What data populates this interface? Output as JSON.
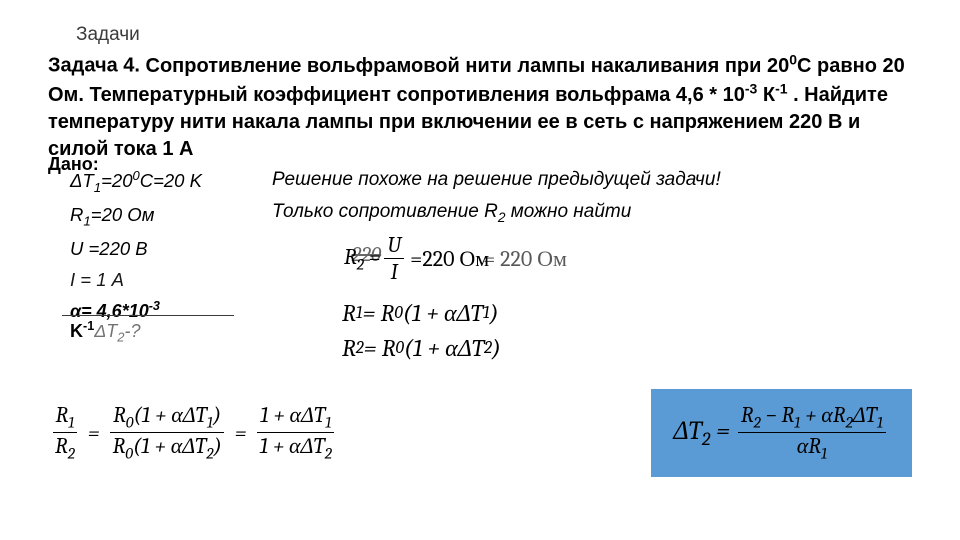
{
  "header": {
    "label": "Задачи"
  },
  "problem": {
    "title_prefix": "Задача 4.",
    "text_html": "Сопротивление вольфрамовой нити лампы накаливания при 20<span class='sup'>0</span>С равно 20 Ом. Температурный коэффициент сопротивления вольфрама 4,6 * 10<span class='sup'>-3</span> К<span class='sup'>-1</span> . Найдите температуру нити накала лампы при включении ее в сеть с напряжением 220 В и силой тока 1 А"
  },
  "given": {
    "label": "Дано:",
    "dT1": "ΔT<span class='sub'>1</span>=20<span class='sup'>0</span>C=20 K",
    "R1": "R<span class='sub'>1</span>=20 Ом",
    "U": "U =220 В",
    "I": "I = 1 А",
    "alpha": "α= 4,6*10<span class='sup'>-3</span>",
    "alpha_unit": "K<span class='sup'>-1</span>",
    "find": "ΔT<span class='sub'>2</span>-?"
  },
  "solution": {
    "line1": "Решение похоже на решение предыдущей задачи!",
    "line2": "Только сопротивление R<span class='sub'>2</span> можно найти",
    "r2_eq_lhs": "R<span class='sub'>2</span> =",
    "r2_frac_num": "U",
    "r2_frac_den": "I",
    "r2_overlay": "=220 Ом",
    "r2_scratch": "220",
    "r2_trail": "= 220 Ом",
    "f1": "R<span class='sub'>1</span> = R<span class='sub'>0</span>(1 + αΔT<span class='sub'>1</span>)",
    "f2": "R<span class='sub'>2</span> = R<span class='sub'>0</span>(1 + αΔT<span class='sub'>2</span>)"
  },
  "ratio": {
    "lhs_num": "R<span class='sub'>1</span>",
    "lhs_den": "R<span class='sub'>2</span>",
    "mid_num": "R<span class='sub'>0</span>(1 + αΔT<span class='sub'>1</span>)",
    "mid_den": "R<span class='sub'>0</span>(1 + αΔT<span class='sub'>2</span>)",
    "rhs_num": "1 + αΔT<span class='sub'>1</span>",
    "rhs_den": "1 + αΔT<span class='sub'>2</span>"
  },
  "result": {
    "lhs": "ΔT<span class='sub'>2</span> =",
    "num": "R<span class='sub'>2</span> − R<span class='sub'>1</span> + αR<span class='sub'>2</span>ΔT<span class='sub'>1</span>",
    "den": "αR<span class='sub'>1</span>"
  },
  "colors": {
    "highlight_box": "#5b9bd5",
    "text": "#000000",
    "bg": "#ffffff"
  }
}
